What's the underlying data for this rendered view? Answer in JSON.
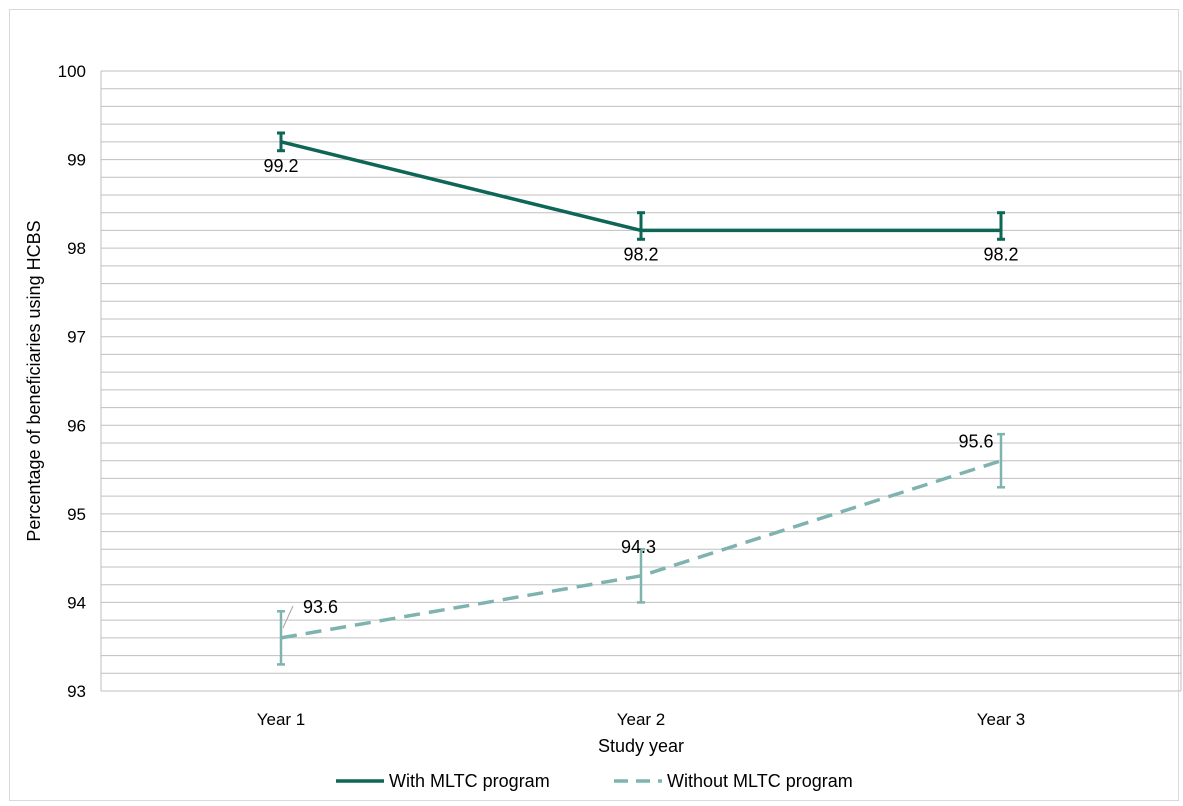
{
  "chart_data": {
    "type": "line",
    "title": "",
    "xlabel": "Study year",
    "ylabel": "Percentage of beneficiaries using HCBS",
    "categories": [
      "Year 1",
      "Year 2",
      "Year 3"
    ],
    "ylim": [
      93,
      100
    ],
    "yticks": [
      93,
      94,
      95,
      96,
      97,
      98,
      99,
      100
    ],
    "minor_grid_step": 0.2,
    "grid": true,
    "legend_position": "bottom",
    "series": [
      {
        "name": "With MLTC program",
        "values": [
          99.2,
          98.2,
          98.2
        ],
        "labels": [
          "99.2",
          "98.2",
          "98.2"
        ],
        "error_low": [
          99.1,
          98.1,
          98.1
        ],
        "error_high": [
          99.3,
          98.4,
          98.4
        ],
        "color": "#0e6656",
        "style": "solid"
      },
      {
        "name": "Without MLTC program",
        "values": [
          93.6,
          94.3,
          95.6
        ],
        "labels": [
          "93.6",
          "94.3",
          "95.6"
        ],
        "error_low": [
          93.3,
          94.0,
          95.3
        ],
        "error_high": [
          93.9,
          94.6,
          95.9
        ],
        "color": "#7fb3b0",
        "style": "dashed"
      }
    ]
  }
}
